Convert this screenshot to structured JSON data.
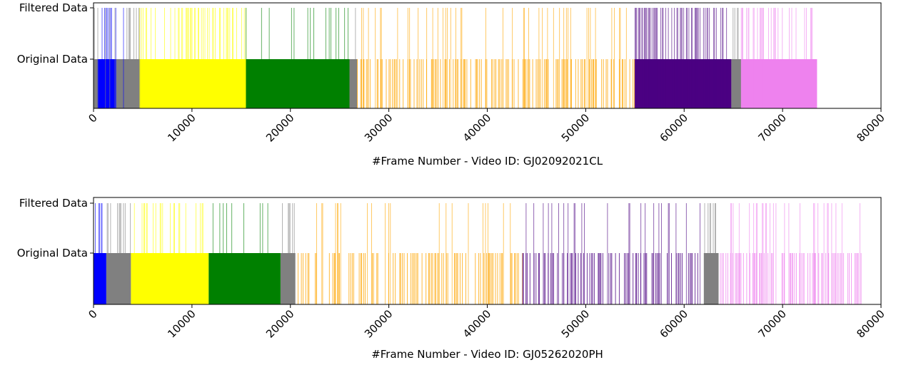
{
  "colors": {
    "unlabeled": "#808080",
    "blue": "#0000ff",
    "yellow": "#ffff00",
    "green": "#008000",
    "orange": "#ffa500",
    "indigo": "#4b0082",
    "violet": "#ee82ee"
  },
  "chart_data": [
    {
      "type": "timeline",
      "xlabel": "#Frame Number - Video ID: GJ02092021CL",
      "xlim": [
        0,
        80000
      ],
      "xticks": [
        0,
        10000,
        20000,
        30000,
        40000,
        50000,
        60000,
        70000,
        80000
      ],
      "ytick_labels": [
        "Filtered Data",
        "Original Data"
      ],
      "original_segments": [
        {
          "start": 0,
          "end": 400,
          "color": "unlabeled"
        },
        {
          "start": 400,
          "end": 2300,
          "color": "blue"
        },
        {
          "start": 2300,
          "end": 4700,
          "color": "unlabeled"
        },
        {
          "start": 4700,
          "end": 15500,
          "color": "yellow"
        },
        {
          "start": 15500,
          "end": 26000,
          "color": "green"
        },
        {
          "start": 26000,
          "end": 26800,
          "color": "unlabeled"
        },
        {
          "start": 26800,
          "end": 55000,
          "color": "orange",
          "sparse": true
        },
        {
          "start": 55000,
          "end": 64800,
          "color": "indigo"
        },
        {
          "start": 64800,
          "end": 65800,
          "color": "unlabeled"
        },
        {
          "start": 65800,
          "end": 73500,
          "color": "violet"
        }
      ],
      "filtered_segments": [
        {
          "start": 0,
          "end": 4700,
          "color": "unlabeled",
          "mix": "blue",
          "density": 0.35
        },
        {
          "start": 4700,
          "end": 15500,
          "color": "yellow",
          "density": 0.28
        },
        {
          "start": 15500,
          "end": 26000,
          "color": "green",
          "density": 0.07
        },
        {
          "start": 26000,
          "end": 26800,
          "color": "unlabeled",
          "density": 0.3
        },
        {
          "start": 26800,
          "end": 55000,
          "color": "orange",
          "density": 0.14
        },
        {
          "start": 55000,
          "end": 64800,
          "color": "indigo",
          "density": 0.5
        },
        {
          "start": 64800,
          "end": 65800,
          "color": "unlabeled",
          "density": 0.3
        },
        {
          "start": 65800,
          "end": 73500,
          "color": "violet",
          "density": 0.45
        }
      ]
    },
    {
      "type": "timeline",
      "xlabel": "#Frame Number - Video ID: GJ05262020PH",
      "xlim": [
        0,
        80000
      ],
      "xticks": [
        0,
        10000,
        20000,
        30000,
        40000,
        50000,
        60000,
        70000,
        80000
      ],
      "ytick_labels": [
        "Filtered Data",
        "Original Data"
      ],
      "original_segments": [
        {
          "start": 0,
          "end": 1300,
          "color": "blue"
        },
        {
          "start": 1300,
          "end": 3800,
          "color": "unlabeled"
        },
        {
          "start": 3800,
          "end": 11700,
          "color": "yellow"
        },
        {
          "start": 11700,
          "end": 19000,
          "color": "green"
        },
        {
          "start": 19000,
          "end": 20500,
          "color": "unlabeled"
        },
        {
          "start": 20500,
          "end": 43600,
          "color": "orange",
          "sparse": true
        },
        {
          "start": 43600,
          "end": 62000,
          "color": "indigo",
          "sparse": true
        },
        {
          "start": 62000,
          "end": 63500,
          "color": "unlabeled"
        },
        {
          "start": 63500,
          "end": 78000,
          "color": "violet",
          "sparse": true
        }
      ],
      "filtered_segments": [
        {
          "start": 0,
          "end": 1300,
          "color": "blue",
          "density": 0.25
        },
        {
          "start": 1300,
          "end": 3800,
          "color": "unlabeled",
          "density": 0.3
        },
        {
          "start": 3800,
          "end": 11700,
          "color": "yellow",
          "density": 0.22
        },
        {
          "start": 11700,
          "end": 19000,
          "color": "green",
          "density": 0.18
        },
        {
          "start": 19000,
          "end": 20500,
          "color": "unlabeled",
          "density": 0.3
        },
        {
          "start": 20500,
          "end": 43600,
          "color": "orange",
          "density": 0.1
        },
        {
          "start": 43600,
          "end": 62000,
          "color": "indigo",
          "density": 0.15
        },
        {
          "start": 62000,
          "end": 63500,
          "color": "unlabeled",
          "density": 0.3
        },
        {
          "start": 63500,
          "end": 78000,
          "color": "violet",
          "density": 0.18
        }
      ]
    }
  ]
}
